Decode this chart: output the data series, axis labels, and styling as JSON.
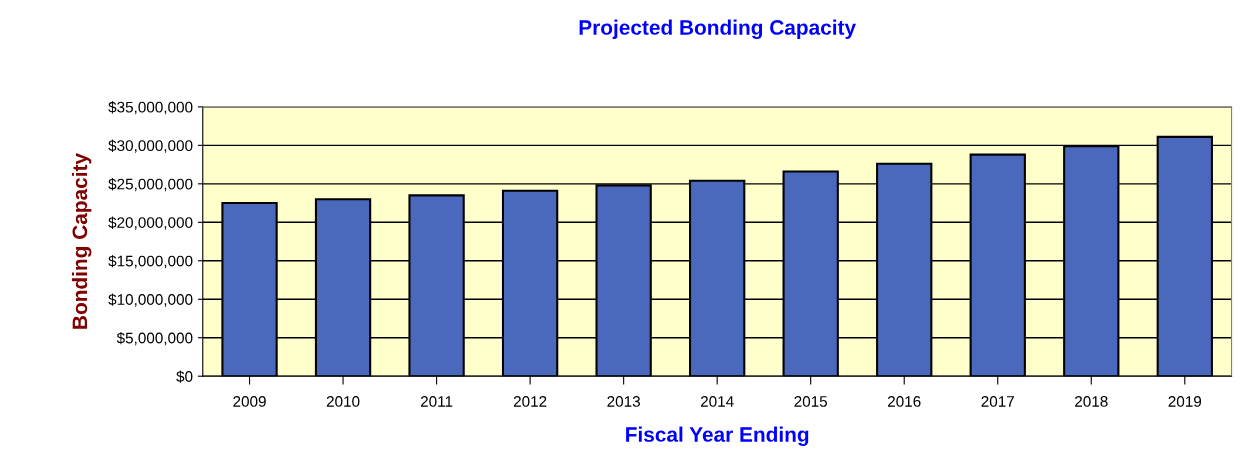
{
  "chart_data": {
    "type": "bar",
    "title": "Projected Bonding Capacity",
    "xlabel": "Fiscal Year Ending",
    "ylabel": "Bonding Capacity",
    "categories": [
      "2009",
      "2010",
      "2011",
      "2012",
      "2013",
      "2014",
      "2015",
      "2016",
      "2017",
      "2018",
      "2019"
    ],
    "values": [
      22500000,
      23000000,
      23500000,
      24100000,
      24800000,
      25400000,
      26600000,
      27600000,
      28800000,
      29900000,
      31100000
    ],
    "color": "#4a68bc",
    "ylim": [
      0,
      35000000
    ],
    "yticks": [
      {
        "value": 0,
        "label": "$0"
      },
      {
        "value": 5000000,
        "label": "$5,000,000"
      },
      {
        "value": 10000000,
        "label": "$10,000,000"
      },
      {
        "value": 15000000,
        "label": "$15,000,000"
      },
      {
        "value": 20000000,
        "label": "$20,000,000"
      },
      {
        "value": 25000000,
        "label": "$25,000,000"
      },
      {
        "value": 30000000,
        "label": "$30,000,000"
      },
      {
        "value": 35000000,
        "label": "$35,000,000"
      }
    ],
    "grid": "y"
  }
}
